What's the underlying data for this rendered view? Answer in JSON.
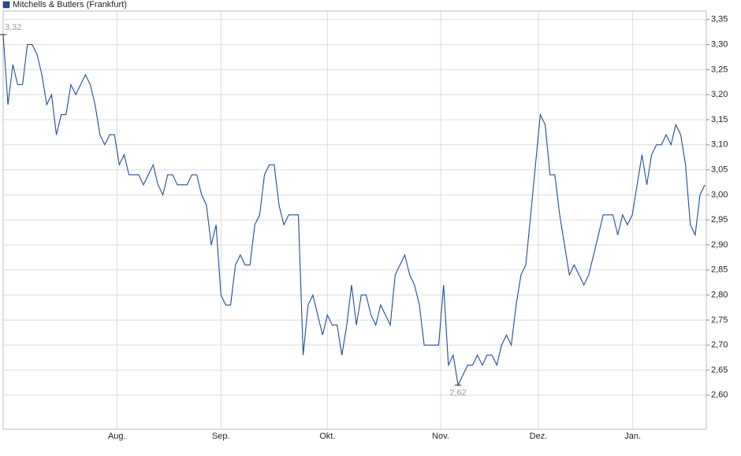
{
  "chart_data": {
    "type": "line",
    "series": [
      {
        "name": "Mitchells & Butlers (Frankfurt)",
        "color": "#1f4e96",
        "values": [
          3.32,
          3.18,
          3.26,
          3.22,
          3.22,
          3.3,
          3.3,
          3.28,
          3.24,
          3.18,
          3.2,
          3.12,
          3.16,
          3.16,
          3.22,
          3.2,
          3.22,
          3.24,
          3.22,
          3.18,
          3.12,
          3.1,
          3.12,
          3.12,
          3.06,
          3.08,
          3.04,
          3.04,
          3.04,
          3.02,
          3.04,
          3.06,
          3.02,
          3.0,
          3.04,
          3.04,
          3.02,
          3.02,
          3.02,
          3.04,
          3.04,
          3.0,
          2.98,
          2.9,
          2.94,
          2.8,
          2.78,
          2.78,
          2.86,
          2.88,
          2.86,
          2.86,
          2.94,
          2.96,
          3.04,
          3.06,
          3.06,
          2.98,
          2.94,
          2.96,
          2.96,
          2.96,
          2.68,
          2.78,
          2.8,
          2.76,
          2.72,
          2.76,
          2.74,
          2.74,
          2.68,
          2.74,
          2.82,
          2.74,
          2.8,
          2.8,
          2.76,
          2.74,
          2.78,
          2.76,
          2.74,
          2.84,
          2.86,
          2.88,
          2.84,
          2.82,
          2.78,
          2.7,
          2.7,
          2.7,
          2.7,
          2.82,
          2.66,
          2.68,
          2.62,
          2.64,
          2.66,
          2.66,
          2.68,
          2.66,
          2.68,
          2.68,
          2.66,
          2.7,
          2.72,
          2.7,
          2.78,
          2.84,
          2.86,
          2.96,
          3.06,
          3.16,
          3.14,
          3.04,
          3.04,
          2.96,
          2.9,
          2.84,
          2.86,
          2.84,
          2.82,
          2.84,
          2.88,
          2.92,
          2.96,
          2.96,
          2.96,
          2.92,
          2.96,
          2.94,
          2.96,
          3.02,
          3.08,
          3.02,
          3.08,
          3.1,
          3.1,
          3.12,
          3.1,
          3.14,
          3.12,
          3.06,
          2.94,
          2.92,
          3.0,
          3.02
        ]
      }
    ],
    "xlim": [
      0,
      145.3
    ],
    "xticks": [
      {
        "value": 23.5,
        "label": "Aug."
      },
      {
        "value": 45.0,
        "label": "Sep."
      },
      {
        "value": 67.0,
        "label": "Okt."
      },
      {
        "value": 90.4,
        "label": "Nov."
      },
      {
        "value": 110.6,
        "label": "Dez."
      },
      {
        "value": 130.1,
        "label": "Jan."
      }
    ],
    "ylim": [
      2.532,
      3.367
    ],
    "yticks": [
      {
        "value": 2.6,
        "label": "2,60"
      },
      {
        "value": 2.65,
        "label": "2,65"
      },
      {
        "value": 2.7,
        "label": "2,70"
      },
      {
        "value": 2.75,
        "label": "2,75"
      },
      {
        "value": 2.8,
        "label": "2,80"
      },
      {
        "value": 2.85,
        "label": "2,85"
      },
      {
        "value": 2.9,
        "label": "2,90"
      },
      {
        "value": 2.95,
        "label": "2,95"
      },
      {
        "value": 3.0,
        "label": "3,00"
      },
      {
        "value": 3.05,
        "label": "3,05"
      },
      {
        "value": 3.1,
        "label": "3,10"
      },
      {
        "value": 3.15,
        "label": "3,15"
      },
      {
        "value": 3.2,
        "label": "3,20"
      },
      {
        "value": 3.25,
        "label": "3,25"
      },
      {
        "value": 3.3,
        "label": "3,30"
      },
      {
        "value": 3.35,
        "label": "3,35"
      }
    ],
    "grid": true,
    "legend": "top-left",
    "annotations": [
      {
        "text": "3,32",
        "x": 0,
        "y": 3.32
      },
      {
        "text": "2,62",
        "x": 94,
        "y": 2.62
      }
    ]
  }
}
